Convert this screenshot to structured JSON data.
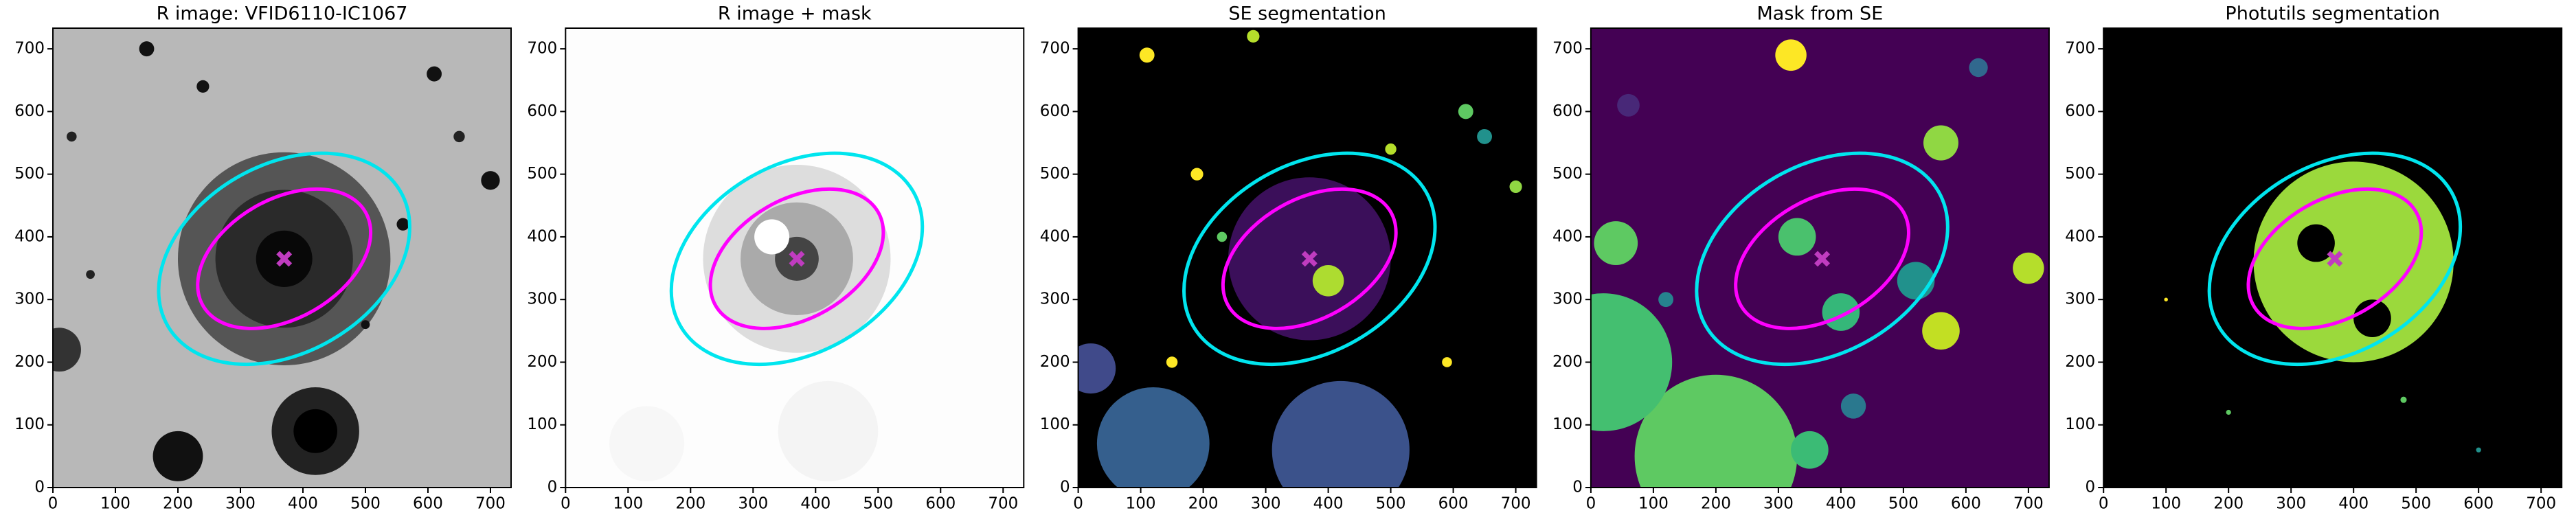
{
  "chart_data": [
    {
      "type": "image",
      "title": "R image: VFID6110-IC1067",
      "xlim": [
        0,
        733
      ],
      "ylim": [
        0,
        733
      ],
      "xticks": [
        0,
        100,
        200,
        300,
        400,
        500,
        600,
        700
      ],
      "yticks": [
        0,
        100,
        200,
        300,
        400,
        500,
        600,
        700
      ]
    },
    {
      "type": "image",
      "title": "R image + mask",
      "xlim": [
        0,
        733
      ],
      "ylim": [
        0,
        733
      ],
      "xticks": [
        0,
        100,
        200,
        300,
        400,
        500,
        600,
        700
      ],
      "yticks": [
        0,
        100,
        200,
        300,
        400,
        500,
        600,
        700
      ]
    },
    {
      "type": "image",
      "title": "SE segmentation",
      "xlim": [
        0,
        733
      ],
      "ylim": [
        0,
        733
      ],
      "xticks": [
        0,
        100,
        200,
        300,
        400,
        500,
        600,
        700
      ],
      "yticks": [
        0,
        100,
        200,
        300,
        400,
        500,
        600,
        700
      ]
    },
    {
      "type": "image",
      "title": "Mask from SE",
      "xlim": [
        0,
        733
      ],
      "ylim": [
        0,
        733
      ],
      "xticks": [
        0,
        100,
        200,
        300,
        400,
        500,
        600,
        700
      ],
      "yticks": [
        0,
        100,
        200,
        300,
        400,
        500,
        600,
        700
      ]
    },
    {
      "type": "image",
      "title": "Photutils segmentation",
      "xlim": [
        0,
        733
      ],
      "ylim": [
        0,
        733
      ],
      "xticks": [
        0,
        100,
        200,
        300,
        400,
        500,
        600,
        700
      ],
      "yticks": [
        0,
        100,
        200,
        300,
        400,
        500,
        600,
        700
      ]
    }
  ]
}
